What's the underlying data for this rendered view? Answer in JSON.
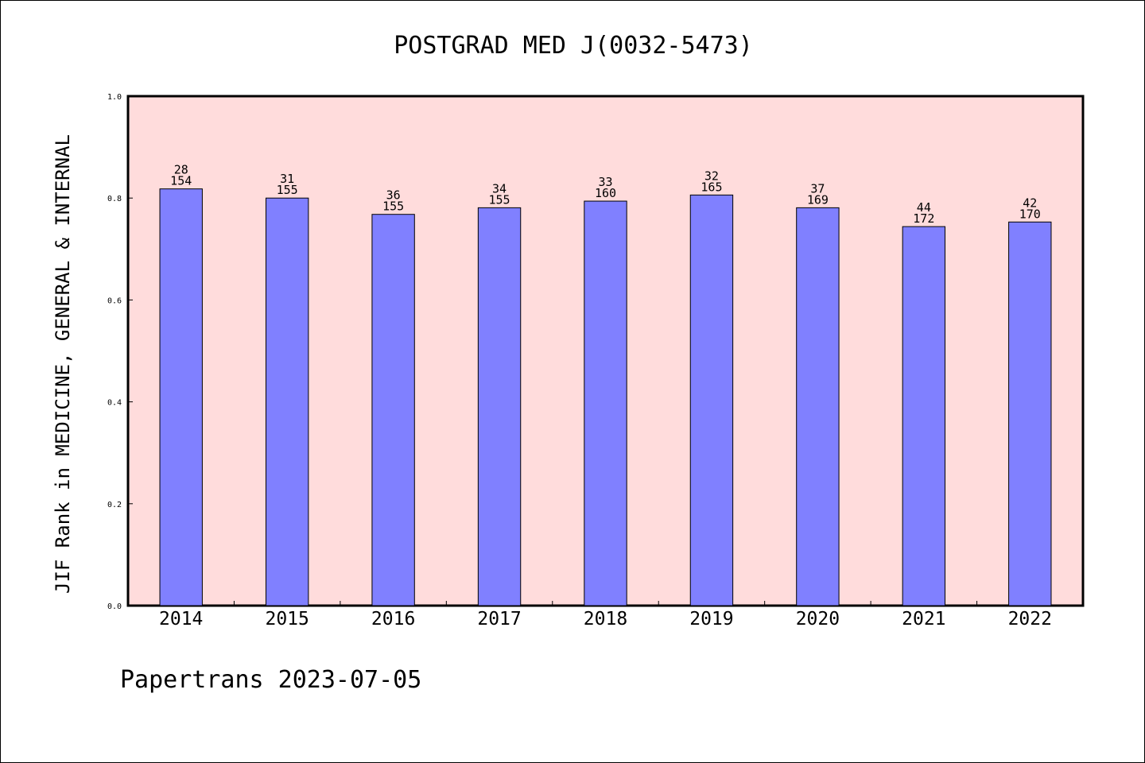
{
  "chart_data": {
    "type": "bar",
    "title": "POSTGRAD MED J(0032-5473)",
    "xlabel": "",
    "ylabel": "JIF Rank in MEDICINE, GENERAL & INTERNAL",
    "categories": [
      "2014",
      "2015",
      "2016",
      "2017",
      "2018",
      "2019",
      "2020",
      "2021",
      "2022"
    ],
    "values": [
      0.818,
      0.8,
      0.768,
      0.781,
      0.794,
      0.806,
      0.781,
      0.744,
      0.753
    ],
    "rank_labels": [
      "28",
      "31",
      "36",
      "34",
      "33",
      "32",
      "37",
      "44",
      "42"
    ],
    "total_labels": [
      "154",
      "155",
      "155",
      "155",
      "160",
      "165",
      "169",
      "172",
      "170"
    ],
    "ylim": [
      0,
      1.0
    ],
    "yticks": [
      "0.0",
      "0.2",
      "0.4",
      "0.6",
      "0.8",
      "1.0"
    ],
    "grid": false,
    "legend": "none",
    "colors": {
      "bar_fill": "#8080ff",
      "plot_background": "#ffdcdc",
      "axis": "#000000"
    }
  },
  "footer": {
    "text": "Papertrans 2023-07-05"
  }
}
